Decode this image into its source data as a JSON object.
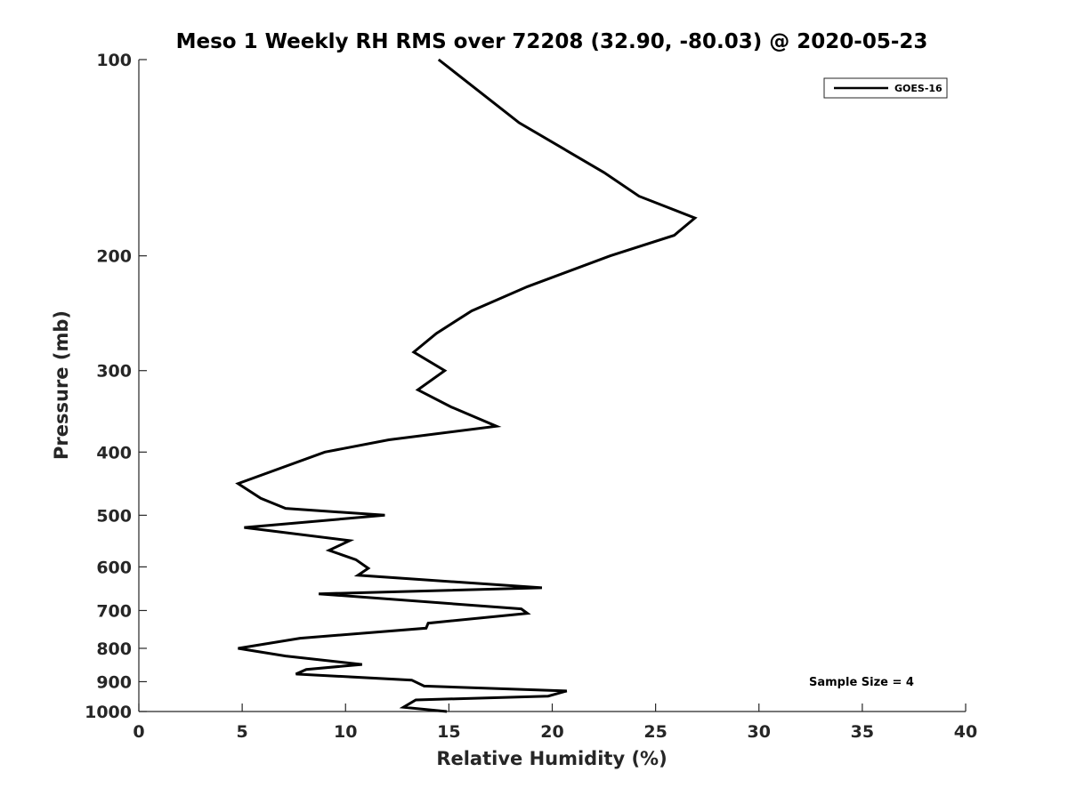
{
  "chart_data": {
    "type": "line",
    "title": "Meso 1 Weekly RH RMS over 72208 (32.90, -80.03) @ 2020-05-23",
    "xlabel": "Relative Humidity (%)",
    "ylabel": "Pressure (mb)",
    "xlim": [
      0,
      40
    ],
    "ylim": [
      1000,
      100
    ],
    "y_scale": "log",
    "y_inverted": true,
    "grid": false,
    "legend_position": "top-right",
    "x_ticks": [
      0,
      5,
      10,
      15,
      20,
      25,
      30,
      35,
      40
    ],
    "y_ticks": [
      100,
      200,
      300,
      400,
      500,
      600,
      700,
      800,
      900,
      1000
    ],
    "annotation": "Sample Size = 4",
    "series": [
      {
        "name": "GOES-16",
        "color": "#000000",
        "x": [
          14.5,
          18.4,
          22.5,
          24.2,
          26.9,
          25.9,
          22.8,
          18.8,
          16.1,
          14.4,
          13.3,
          14.8,
          13.5,
          15.1,
          17.3,
          12.1,
          9.0,
          4.8,
          5.9,
          7.1,
          11.9,
          5.1,
          10.2,
          9.2,
          10.5,
          11.1,
          10.6,
          19.5,
          8.7,
          18.5,
          18.8,
          14.0,
          13.9,
          7.8,
          4.8,
          7.1,
          10.8,
          8.1,
          7.6,
          13.2,
          13.8,
          20.7,
          19.8,
          13.4,
          12.8,
          14.9
        ],
        "y": [
          100,
          125,
          149,
          162,
          175,
          186,
          200,
          223,
          243,
          263,
          281,
          300,
          321,
          341,
          365,
          383,
          400,
          447,
          471,
          488,
          500,
          522,
          547,
          566,
          585,
          603,
          618,
          646,
          660,
          696,
          707,
          732,
          745,
          772,
          800,
          822,
          847,
          862,
          876,
          895,
          914,
          930,
          947,
          960,
          985,
          1000
        ]
      }
    ]
  }
}
